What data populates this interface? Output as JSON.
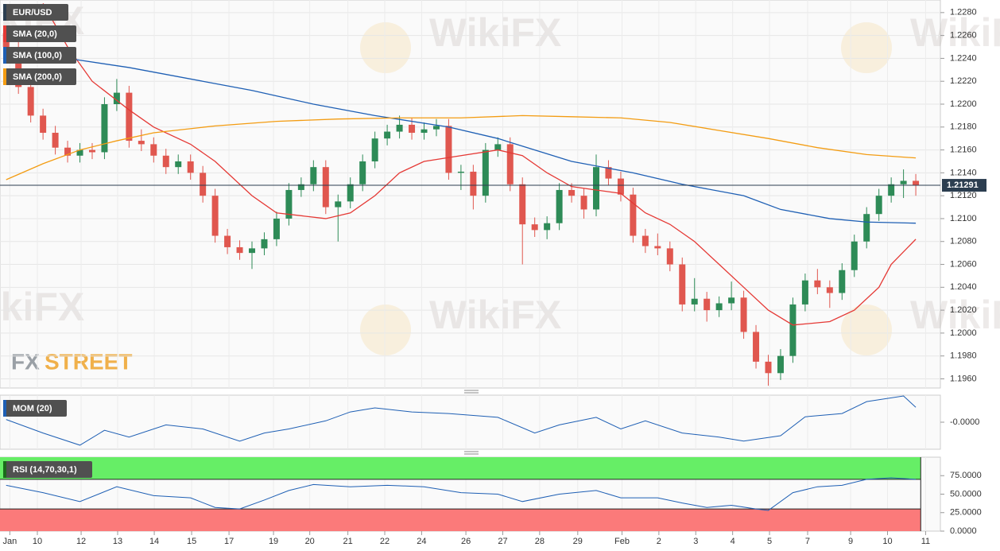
{
  "chart_data": [
    {
      "type": "candlestick",
      "title": "EUR/USD",
      "xlim": [
        -0.5,
        76
      ],
      "xticks": [
        {
          "value": 0.3,
          "label": "Jan"
        },
        {
          "value": 2.54,
          "label": "10"
        },
        {
          "value": 6.1,
          "label": "12"
        },
        {
          "value": 9.07,
          "label": "13"
        },
        {
          "value": 12.05,
          "label": "14"
        },
        {
          "value": 15.09,
          "label": "15"
        },
        {
          "value": 18.13,
          "label": "17"
        },
        {
          "value": 21.75,
          "label": "19"
        },
        {
          "value": 24.7,
          "label": "20"
        },
        {
          "value": 27.8,
          "label": "21"
        },
        {
          "value": 30.8,
          "label": "22"
        },
        {
          "value": 33.8,
          "label": "24"
        },
        {
          "value": 37.4,
          "label": "26"
        },
        {
          "value": 40.4,
          "label": "27"
        },
        {
          "value": 43.4,
          "label": "28"
        },
        {
          "value": 46.5,
          "label": "29"
        },
        {
          "value": 50.1,
          "label": "Feb"
        },
        {
          "value": 53.1,
          "label": "2"
        },
        {
          "value": 56.1,
          "label": "3"
        },
        {
          "value": 59.1,
          "label": "4"
        },
        {
          "value": 62.1,
          "label": "5"
        },
        {
          "value": 65.2,
          "label": "7"
        },
        {
          "value": 68.7,
          "label": "9"
        },
        {
          "value": 71.7,
          "label": "10"
        },
        {
          "value": 74.8,
          "label": "11"
        }
      ],
      "ylim": [
        1.1952,
        1.2291
      ],
      "yticks": [
        {
          "value": 1.228,
          "label": "1.2280"
        },
        {
          "value": 1.226,
          "label": "1.2260"
        },
        {
          "value": 1.224,
          "label": "1.2240"
        },
        {
          "value": 1.222,
          "label": "1.2220"
        },
        {
          "value": 1.22,
          "label": "1.2200"
        },
        {
          "value": 1.218,
          "label": "1.2180"
        },
        {
          "value": 1.216,
          "label": "1.2160"
        },
        {
          "value": 1.214,
          "label": "1.2140"
        },
        {
          "value": 1.212,
          "label": "1.2120"
        },
        {
          "value": 1.21,
          "label": "1.2100"
        },
        {
          "value": 1.208,
          "label": "1.2080"
        },
        {
          "value": 1.206,
          "label": "1.2060"
        },
        {
          "value": 1.204,
          "label": "1.2040"
        },
        {
          "value": 1.202,
          "label": "1.2020"
        },
        {
          "value": 1.2,
          "label": "1.2000"
        },
        {
          "value": 1.198,
          "label": "1.1980"
        },
        {
          "value": 1.196,
          "label": "1.1960"
        }
      ],
      "grid": true,
      "last_price": 1.21291,
      "candles": {
        "up_color": "#2e8b57",
        "down_color": "#e0574f",
        "open": [
          1.2262,
          1.225,
          1.2215,
          1.219,
          1.2175,
          1.2162,
          1.2155,
          1.216,
          1.2158,
          1.22,
          1.221,
          1.2168,
          1.2165,
          1.2155,
          1.2145,
          1.215,
          1.214,
          1.212,
          1.2085,
          1.2075,
          1.207,
          1.2074,
          1.2082,
          1.21,
          1.2125,
          1.213,
          1.2145,
          1.211,
          1.2115,
          1.213,
          1.215,
          1.217,
          1.2176,
          1.2182,
          1.2175,
          1.2178,
          1.2181,
          1.214,
          1.2141,
          1.212,
          1.216,
          1.2165,
          1.213,
          1.2095,
          1.209,
          1.2096,
          1.2125,
          1.212,
          1.2108,
          1.2145,
          1.2135,
          1.2121,
          1.2085,
          1.2076,
          1.2074,
          1.206,
          1.2025,
          1.203,
          1.202,
          1.2026,
          1.2031,
          1.2001,
          1.1975,
          1.1965,
          1.198,
          1.2025,
          1.2046,
          1.204,
          1.2035,
          1.2055,
          1.208,
          1.2104,
          1.212,
          1.213,
          1.2133
        ],
        "high": [
          1.2268,
          1.2256,
          1.2221,
          1.2196,
          1.2181,
          1.2168,
          1.2166,
          1.2166,
          1.2206,
          1.2222,
          1.2216,
          1.2178,
          1.2171,
          1.2161,
          1.2156,
          1.2156,
          1.2146,
          1.2126,
          1.2091,
          1.2081,
          1.208,
          1.2088,
          1.2106,
          1.2131,
          1.2136,
          1.2151,
          1.2151,
          1.2121,
          1.2136,
          1.2156,
          1.2176,
          1.2182,
          1.219,
          1.2188,
          1.2184,
          1.2187,
          1.2187,
          1.2147,
          1.2147,
          1.2166,
          1.2171,
          1.2171,
          1.2136,
          1.2101,
          1.2102,
          1.2131,
          1.2131,
          1.2126,
          1.2156,
          1.2151,
          1.2141,
          1.2127,
          1.2091,
          1.2087,
          1.208,
          1.2066,
          1.2048,
          1.2036,
          1.2032,
          1.2045,
          1.2037,
          1.2007,
          1.1981,
          1.1986,
          1.2031,
          1.2052,
          1.2056,
          1.2046,
          1.2061,
          1.2086,
          1.211,
          1.2126,
          1.2136,
          1.2143,
          1.2139
        ],
        "low": [
          1.2244,
          1.2209,
          1.2184,
          1.2169,
          1.2156,
          1.2149,
          1.2149,
          1.2152,
          1.2152,
          1.2194,
          1.2162,
          1.2159,
          1.2149,
          1.2139,
          1.2139,
          1.2134,
          1.2114,
          1.2079,
          1.2069,
          1.2064,
          1.2056,
          1.2068,
          1.2076,
          1.2094,
          1.2119,
          1.2124,
          1.2104,
          1.208,
          1.2109,
          1.2124,
          1.2144,
          1.2164,
          1.217,
          1.2169,
          1.2169,
          1.2172,
          1.2134,
          1.2125,
          1.2108,
          1.2114,
          1.2154,
          1.2124,
          1.206,
          1.2084,
          1.2082,
          1.209,
          1.2114,
          1.21,
          1.2102,
          1.2129,
          1.2115,
          1.2079,
          1.207,
          1.2068,
          1.2054,
          1.2019,
          1.2019,
          1.201,
          1.2014,
          1.202,
          1.1995,
          1.1969,
          1.1954,
          1.1959,
          1.1974,
          1.2019,
          1.2034,
          1.2022,
          1.2029,
          1.2049,
          1.2074,
          1.2098,
          1.2114,
          1.2118,
          1.212
        ],
        "close": [
          1.225,
          1.2215,
          1.219,
          1.2175,
          1.2162,
          1.2155,
          1.216,
          1.2158,
          1.22,
          1.221,
          1.2168,
          1.2165,
          1.2155,
          1.2145,
          1.215,
          1.214,
          1.212,
          1.2085,
          1.2075,
          1.207,
          1.2074,
          1.2082,
          1.21,
          1.2125,
          1.213,
          1.2145,
          1.211,
          1.2115,
          1.213,
          1.215,
          1.217,
          1.2176,
          1.2182,
          1.2175,
          1.2178,
          1.2181,
          1.214,
          1.2141,
          1.212,
          1.216,
          1.2165,
          1.213,
          1.2095,
          1.209,
          1.2096,
          1.2125,
          1.212,
          1.2108,
          1.2145,
          1.2135,
          1.2121,
          1.2085,
          1.2076,
          1.2074,
          1.206,
          1.2025,
          1.203,
          1.202,
          1.2026,
          1.2031,
          1.2001,
          1.1975,
          1.1965,
          1.198,
          1.2025,
          1.2046,
          1.204,
          1.2035,
          1.2055,
          1.208,
          1.2104,
          1.212,
          1.213,
          1.2133,
          1.2129
        ]
      },
      "series": [
        {
          "name": "SMA (20,0)",
          "color": "#e53935",
          "x": [
            3,
            5,
            7,
            10,
            12,
            15,
            17,
            20,
            22,
            26,
            28,
            30,
            32,
            34,
            37,
            40,
            42,
            44,
            46,
            48,
            50,
            52,
            54,
            56,
            58,
            60,
            62,
            64,
            67,
            69,
            71,
            72,
            74
          ],
          "values": [
            1.2288,
            1.225,
            1.222,
            1.2195,
            1.218,
            1.2165,
            1.215,
            1.212,
            1.2105,
            1.21,
            1.2105,
            1.212,
            1.214,
            1.215,
            1.2155,
            1.216,
            1.2155,
            1.214,
            1.2128,
            1.2125,
            1.2122,
            1.2105,
            1.2095,
            1.208,
            1.206,
            1.204,
            1.202,
            1.2007,
            1.201,
            1.202,
            1.204,
            1.206,
            1.2082
          ]
        },
        {
          "name": "SMA (100,0)",
          "color": "#1e5fb4",
          "x": [
            0,
            5,
            10,
            16,
            20,
            25,
            30,
            36,
            40,
            46,
            51,
            55,
            60,
            63,
            67,
            70,
            74
          ],
          "values": [
            1.2246,
            1.224,
            1.2232,
            1.222,
            1.2212,
            1.22,
            1.219,
            1.218,
            1.217,
            1.215,
            1.214,
            1.213,
            1.212,
            1.2108,
            1.21,
            1.2097,
            1.2096
          ]
        },
        {
          "name": "SMA (200,0)",
          "color": "#f39c12",
          "x": [
            0,
            3,
            6,
            9,
            12,
            17,
            22,
            27,
            32,
            37,
            42,
            46,
            50,
            54,
            58,
            62,
            66,
            70,
            74
          ],
          "values": [
            1.2134,
            1.2148,
            1.216,
            1.2168,
            1.2175,
            1.2181,
            1.2185,
            1.2187,
            1.2188,
            1.2188,
            1.219,
            1.2189,
            1.2188,
            1.2184,
            1.2177,
            1.217,
            1.2162,
            1.2156,
            1.2153
          ]
        }
      ]
    },
    {
      "type": "line",
      "title": "MOM (20)",
      "color": "#1e5fb4",
      "xlim": [
        -0.5,
        76
      ],
      "ylim": [
        -1,
        1
      ],
      "yticks": [
        {
          "value": 0,
          "label": "-0.0000"
        }
      ],
      "x": [
        0,
        3,
        6,
        8,
        10,
        13,
        16,
        19,
        21,
        23,
        26,
        28,
        30,
        33,
        36,
        40,
        43,
        45,
        48,
        50,
        52,
        55,
        58,
        60,
        63,
        65,
        68,
        70,
        73,
        74
      ],
      "values": [
        0.1,
        -0.4,
        -0.85,
        -0.3,
        -0.55,
        -0.1,
        -0.25,
        -0.7,
        -0.4,
        -0.25,
        0.05,
        0.38,
        0.53,
        0.38,
        0.32,
        0.18,
        -0.4,
        -0.1,
        0.18,
        -0.25,
        0.05,
        -0.4,
        -0.55,
        -0.7,
        -0.5,
        0.2,
        0.32,
        0.76,
        0.97,
        0.55
      ]
    },
    {
      "type": "rsi",
      "title": "RSI (14,70,30,1)",
      "color": "#1e5fb4",
      "xlim": [
        -0.5,
        76
      ],
      "ylim": [
        0,
        100
      ],
      "yticks": [
        {
          "value": 0,
          "label": "0.0000"
        },
        {
          "value": 25,
          "label": "25.0000"
        },
        {
          "value": 50,
          "label": "50.0000"
        },
        {
          "value": 75,
          "label": "75.0000"
        }
      ],
      "overbought": 70,
      "oversold": 30,
      "overbought_color": "#66ee66",
      "oversold_color": "#fb7a7a",
      "x": [
        0,
        3,
        6,
        9,
        12,
        15,
        17,
        19,
        21,
        23,
        25,
        28,
        31,
        34,
        37,
        40,
        42,
        45,
        48,
        50,
        53,
        55,
        57,
        59,
        61,
        62,
        64,
        66,
        68,
        70,
        72,
        74
      ],
      "values": [
        62,
        52,
        40,
        60,
        48,
        45,
        32,
        30,
        42,
        55,
        63,
        60,
        62,
        60,
        52,
        50,
        40,
        50,
        55,
        45,
        45,
        38,
        32,
        35,
        30,
        28,
        52,
        60,
        62,
        70,
        72,
        70
      ]
    }
  ],
  "watermark": "WikiFX",
  "brand": {
    "left": "FX",
    "right": "STREET"
  }
}
